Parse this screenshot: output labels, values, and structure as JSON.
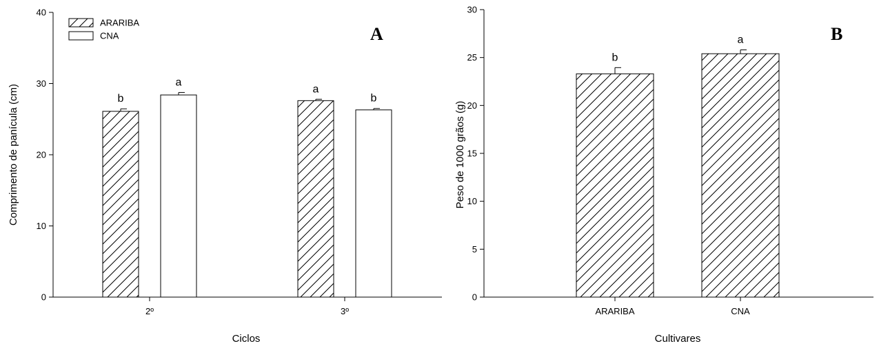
{
  "chart_data": [
    {
      "type": "bar",
      "panel_label": "A",
      "xlabel": "Ciclos",
      "ylabel": "Comprimento de panícula (cm)",
      "categories": [
        "2º",
        "3º"
      ],
      "ylim": [
        0,
        40
      ],
      "yticks": [
        0,
        10,
        20,
        30,
        40
      ],
      "grid": false,
      "legend_position": "top-left",
      "series": [
        {
          "name": "ARARIBA",
          "pattern": "hatched",
          "values": [
            26.1,
            27.6
          ],
          "errors": [
            0.35,
            0.2
          ],
          "letters": [
            "b",
            "a"
          ]
        },
        {
          "name": "CNA",
          "pattern": "open",
          "values": [
            28.4,
            26.3
          ],
          "errors": [
            0.35,
            0.2
          ],
          "letters": [
            "a",
            "b"
          ]
        }
      ]
    },
    {
      "type": "bar",
      "panel_label": "B",
      "xlabel": "Cultivares",
      "ylabel": "Peso de 1000 grãos (g)",
      "categories": [
        "ARARIBA",
        "CNA"
      ],
      "ylim": [
        0,
        30
      ],
      "yticks": [
        0,
        5,
        10,
        15,
        20,
        25,
        30
      ],
      "grid": false,
      "series": [
        {
          "pattern": "hatched",
          "values": [
            23.3,
            25.4
          ],
          "errors": [
            0.65,
            0.4
          ],
          "letters": [
            "b",
            "a"
          ]
        }
      ]
    }
  ]
}
